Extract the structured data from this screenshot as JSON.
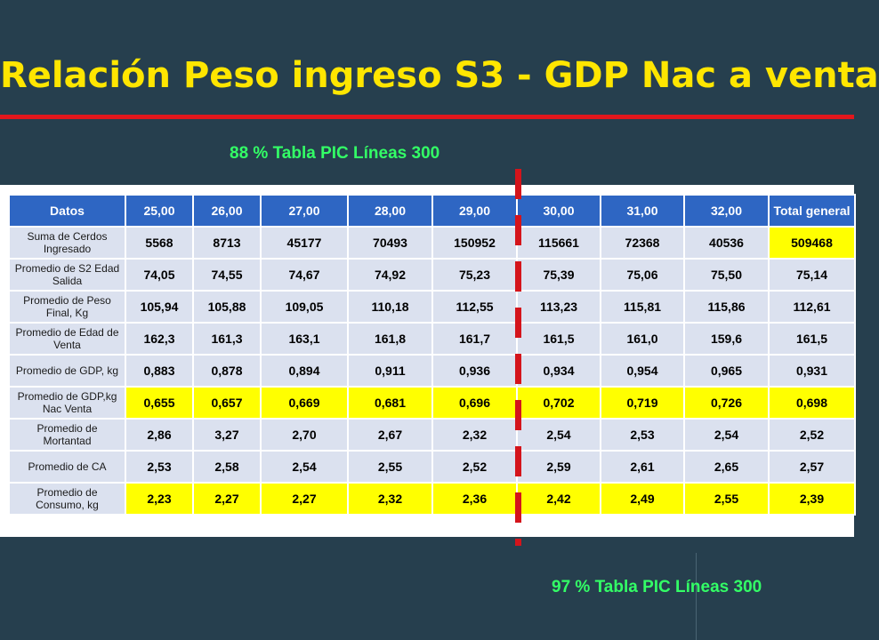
{
  "slide": {
    "title": "Relación Peso ingreso S3 - GDP Nac a venta",
    "note_left": "88 % Tabla PIC Líneas 300",
    "note_right": "97 % Tabla PIC Líneas 300"
  },
  "colors": {
    "background": "#263f4e",
    "title": "#ffe600",
    "rule": "#e3171c",
    "note": "#33ff66",
    "header": "#2e66c3",
    "cell": "#dbe1ef",
    "highlight": "#ffff00"
  },
  "table": {
    "headers": [
      "Datos",
      "25,00",
      "26,00",
      "27,00",
      "28,00",
      "29,00",
      "30,00",
      "31,00",
      "32,00",
      "Total general"
    ],
    "rows": [
      {
        "label": "Suma de Cerdos Ingresado",
        "values": [
          "5568",
          "8713",
          "45177",
          "70493",
          "150952",
          "115661",
          "72368",
          "40536",
          "509468"
        ],
        "highlight": "total"
      },
      {
        "label": "Promedio de  S2 Edad Salida",
        "values": [
          "74,05",
          "74,55",
          "74,67",
          "74,92",
          "75,23",
          "75,39",
          "75,06",
          "75,50",
          "75,14"
        ],
        "highlight": "none"
      },
      {
        "label": "Promedio de Peso Final, Kg",
        "values": [
          "105,94",
          "105,88",
          "109,05",
          "110,18",
          "112,55",
          "113,23",
          "115,81",
          "115,86",
          "112,61"
        ],
        "highlight": "none"
      },
      {
        "label": "Promedio de Edad de Venta",
        "values": [
          "162,3",
          "161,3",
          "163,1",
          "161,8",
          "161,7",
          "161,5",
          "161,0",
          "159,6",
          "161,5"
        ],
        "highlight": "none"
      },
      {
        "label": "Promedio de GDP, kg",
        "values": [
          "0,883",
          "0,878",
          "0,894",
          "0,911",
          "0,936",
          "0,934",
          "0,954",
          "0,965",
          "0,931"
        ],
        "highlight": "none"
      },
      {
        "label": "Promedio de GDP,kg Nac Venta",
        "values": [
          "0,655",
          "0,657",
          "0,669",
          "0,681",
          "0,696",
          "0,702",
          "0,719",
          "0,726",
          "0,698"
        ],
        "highlight": "all"
      },
      {
        "label": "Promedio de Mortantad",
        "values": [
          "2,86",
          "3,27",
          "2,70",
          "2,67",
          "2,32",
          "2,54",
          "2,53",
          "2,54",
          "2,52"
        ],
        "highlight": "none"
      },
      {
        "label": "Promedio de CA",
        "values": [
          "2,53",
          "2,58",
          "2,54",
          "2,55",
          "2,52",
          "2,59",
          "2,61",
          "2,65",
          "2,57"
        ],
        "highlight": "none"
      },
      {
        "label": "Promedio de Consumo, kg",
        "values": [
          "2,23",
          "2,27",
          "2,27",
          "2,32",
          "2,36",
          "2,42",
          "2,49",
          "2,55",
          "2,39"
        ],
        "highlight": "all"
      }
    ]
  }
}
